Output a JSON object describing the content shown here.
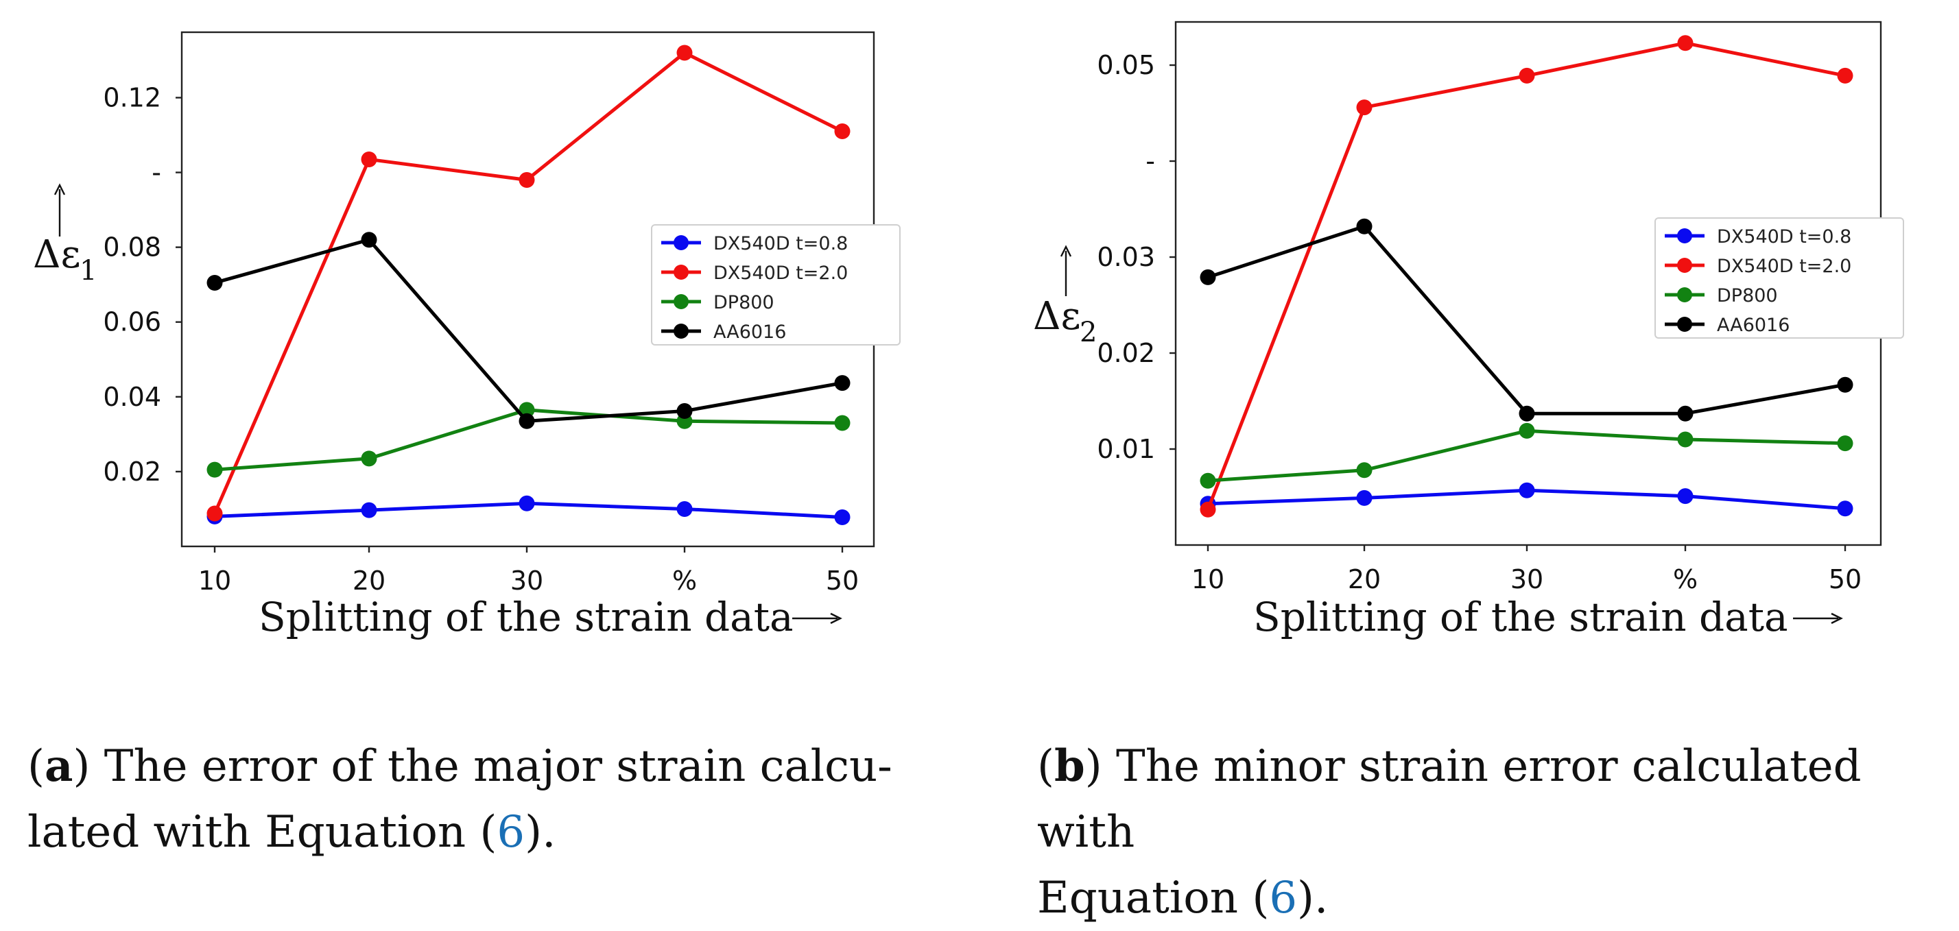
{
  "chart_data": [
    {
      "type": "line",
      "panel": "a",
      "categories": [
        "10",
        "20",
        "30",
        "%",
        "50"
      ],
      "x": [
        10,
        20,
        30,
        40,
        50
      ],
      "ylim": [
        0.0,
        0.1375
      ],
      "yticks": [
        0.02,
        0.04,
        0.06,
        0.08,
        0.1,
        0.12
      ],
      "ytick_labels": [
        "0.02",
        "0.04",
        "0.06",
        "0.08",
        "-",
        "0.12"
      ],
      "ylabel": "Δε",
      "ylabel_sub": "1",
      "xlabel": "Splitting of the strain data",
      "grid": false,
      "legend_position": "center-right",
      "series": [
        {
          "name": "DX540D t=0.8",
          "color": "#0a0af0",
          "values": [
            0.008,
            0.0097,
            0.0115,
            0.01,
            0.0078
          ]
        },
        {
          "name": "DX540D t=2.0",
          "color": "#f01010",
          "values": [
            0.0088,
            0.1035,
            0.098,
            0.132,
            0.111
          ]
        },
        {
          "name": "DP800",
          "color": "#128212",
          "values": [
            0.0205,
            0.0235,
            0.0365,
            0.0335,
            0.033
          ]
        },
        {
          "name": "AA6016",
          "color": "#000000",
          "values": [
            0.0705,
            0.082,
            0.0335,
            0.0362,
            0.0437
          ]
        }
      ]
    },
    {
      "type": "line",
      "panel": "b",
      "categories": [
        "10",
        "20",
        "30",
        "%",
        "50"
      ],
      "x": [
        10,
        20,
        30,
        40,
        50
      ],
      "ylim": [
        0.0,
        0.0545
      ],
      "yticks": [
        0.01,
        0.02,
        0.03,
        0.04,
        0.05
      ],
      "ytick_labels": [
        "0.01",
        "0.02",
        "0.03",
        "-",
        "0.05"
      ],
      "ylabel": "Δε",
      "ylabel_sub": "2",
      "xlabel": "Splitting of the strain data",
      "grid": false,
      "legend_position": "center-right",
      "series": [
        {
          "name": "DX540D t=0.8",
          "color": "#0a0af0",
          "values": [
            0.0043,
            0.0049,
            0.0057,
            0.0051,
            0.0038
          ]
        },
        {
          "name": "DX540D t=2.0",
          "color": "#f01010",
          "values": [
            0.0037,
            0.0456,
            0.0489,
            0.0523,
            0.0489
          ]
        },
        {
          "name": "DP800",
          "color": "#128212",
          "values": [
            0.0067,
            0.0078,
            0.0119,
            0.011,
            0.0106
          ]
        },
        {
          "name": "AA6016",
          "color": "#000000",
          "values": [
            0.0279,
            0.0332,
            0.0137,
            0.0137,
            0.0167
          ]
        }
      ]
    }
  ],
  "captions": [
    {
      "label": "a",
      "line1": " The error of the major strain calcu-",
      "line2_pre": "lated with Equation (",
      "ref": "6",
      "line2_post": ")."
    },
    {
      "label": "b",
      "line1": " The minor strain error calculated with",
      "line2_pre": "Equation (",
      "ref": "6",
      "line2_post": ")."
    }
  ]
}
